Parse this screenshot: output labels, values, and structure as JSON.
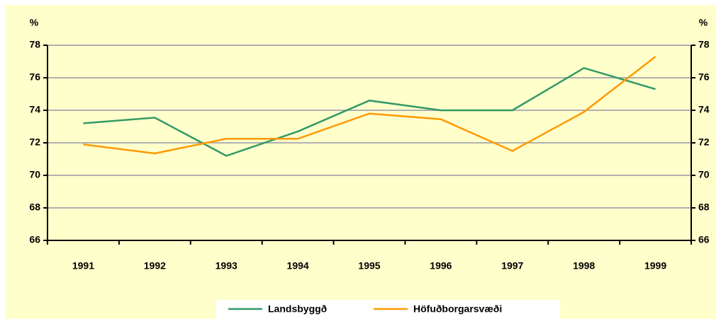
{
  "chart_data": {
    "type": "line",
    "y_label": "%",
    "y2_label": "%",
    "categories": [
      "1991",
      "1992",
      "1993",
      "1994",
      "1995",
      "1996",
      "1997",
      "1998",
      "1999"
    ],
    "series": [
      {
        "name": "Landsbyggð",
        "color": "#339966",
        "values": [
          73.2,
          73.55,
          71.2,
          72.7,
          74.6,
          74.0,
          74.0,
          76.6,
          75.3
        ]
      },
      {
        "name": "Höfuðborgarsvæði",
        "color": "#ff9900",
        "values": [
          71.9,
          71.35,
          72.25,
          72.25,
          73.8,
          73.45,
          71.5,
          73.9,
          77.3
        ]
      }
    ],
    "ylim": [
      66,
      78
    ],
    "yticks": [
      66,
      68,
      70,
      72,
      74,
      76,
      78
    ],
    "y2lim": [
      66,
      78
    ],
    "y2ticks": [
      66,
      68,
      70,
      72,
      74,
      76,
      78
    ],
    "grid": true,
    "legend": "bottom"
  }
}
